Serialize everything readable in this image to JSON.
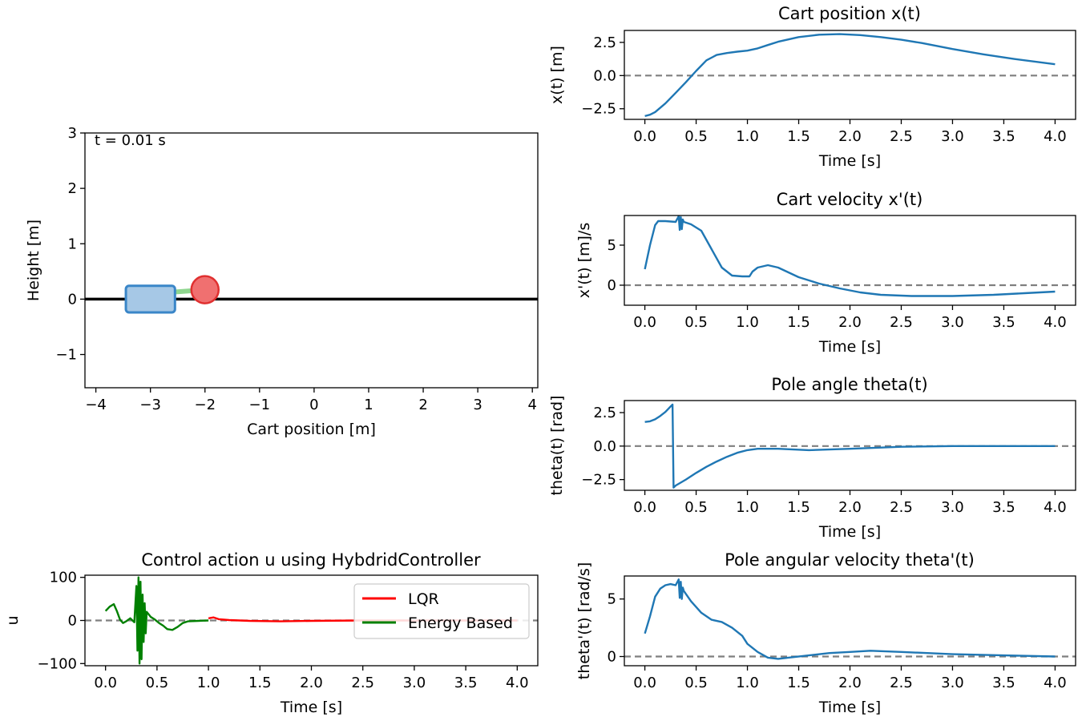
{
  "chart_data": [
    {
      "id": "animation",
      "type": "scatter",
      "title": "",
      "xlabel": "Cart position [m]",
      "ylabel": "Height [m]",
      "xlim": [
        -4.2,
        4.1
      ],
      "ylim": [
        -1.6,
        3.0
      ],
      "xticks": [
        -4,
        -3,
        -2,
        -1,
        0,
        1,
        2,
        3,
        4
      ],
      "xticklabels": [
        "−4",
        "−3",
        "−2",
        "−1",
        "0",
        "1",
        "2",
        "3",
        "4"
      ],
      "yticks": [
        -1,
        0,
        1,
        2,
        3
      ],
      "yticklabels": [
        "−1",
        "0",
        "1",
        "2",
        "3"
      ],
      "annotation": "t = 0.01 s",
      "ground_y": 0,
      "cart": {
        "x": -3.0,
        "y": 0.0,
        "width": 0.9,
        "height": 0.48,
        "fill": "#a6c8e6",
        "stroke": "#3a86c8"
      },
      "pole_end": {
        "x": -2.0,
        "y": 0.17
      },
      "bob": {
        "x": -2.0,
        "y": 0.17,
        "fill": "#f07070",
        "stroke": "#e03030"
      },
      "pole_color": "#8fd68f"
    },
    {
      "id": "control",
      "type": "line",
      "title": "Control action u using HybdridController",
      "xlabel": "Time [s]",
      "ylabel": "u",
      "xlim": [
        -0.2,
        4.2
      ],
      "ylim": [
        -105,
        105
      ],
      "xticks": [
        0,
        0.5,
        1,
        1.5,
        2,
        2.5,
        3,
        3.5,
        4
      ],
      "xticklabels": [
        "0.0",
        "0.5",
        "1.0",
        "1.5",
        "2.0",
        "2.5",
        "3.0",
        "3.5",
        "4.0"
      ],
      "yticks": [
        -100,
        0,
        100
      ],
      "yticklabels": [
        "−100",
        "0",
        "100"
      ],
      "reference_y": 0,
      "legend": "top-right",
      "series": [
        {
          "name": "LQR",
          "color": "#ff0000",
          "x": [
            1.0,
            1.05,
            1.1,
            1.2,
            1.4,
            1.7,
            2.0,
            2.5,
            3.0,
            3.5,
            4.0
          ],
          "y": [
            5,
            7,
            3,
            1,
            -1,
            -2,
            -1,
            0,
            0,
            0,
            0
          ]
        },
        {
          "name": "Energy Based",
          "color": "#008000",
          "x": [
            0.0,
            0.04,
            0.08,
            0.11,
            0.14,
            0.17,
            0.2,
            0.24,
            0.28,
            0.3,
            0.31,
            0.32,
            0.33,
            0.34,
            0.35,
            0.36,
            0.37,
            0.38,
            0.39,
            0.4,
            0.44,
            0.48,
            0.52,
            0.56,
            0.6,
            0.65,
            0.7,
            0.75,
            0.8,
            0.9,
            1.0
          ],
          "y": [
            22,
            32,
            38,
            22,
            2,
            -6,
            -2,
            5,
            -4,
            80,
            -70,
            100,
            -100,
            90,
            -90,
            60,
            -50,
            40,
            -30,
            20,
            8,
            2,
            -6,
            -12,
            -20,
            -22,
            -15,
            -6,
            -2,
            -1,
            0
          ]
        }
      ]
    },
    {
      "id": "position",
      "type": "line",
      "title": "Cart position x(t)",
      "xlabel": "Time [s]",
      "ylabel": "x(t) [m]",
      "xlim": [
        -0.2,
        4.2
      ],
      "ylim": [
        -3.3,
        3.4
      ],
      "xticks": [
        0,
        0.5,
        1,
        1.5,
        2,
        2.5,
        3,
        3.5,
        4
      ],
      "xticklabels": [
        "0.0",
        "0.5",
        "1.0",
        "1.5",
        "2.0",
        "2.5",
        "3.0",
        "3.5",
        "4.0"
      ],
      "yticks": [
        -2.5,
        0,
        2.5
      ],
      "yticklabels": [
        "−2.5",
        "0.0",
        "2.5"
      ],
      "reference_y": 0,
      "series": [
        {
          "color": "#1f77b4",
          "x": [
            0.0,
            0.05,
            0.1,
            0.2,
            0.3,
            0.4,
            0.5,
            0.6,
            0.7,
            0.8,
            0.9,
            1.0,
            1.1,
            1.2,
            1.3,
            1.5,
            1.7,
            1.9,
            2.1,
            2.3,
            2.5,
            2.7,
            3.0,
            3.3,
            3.6,
            4.0
          ],
          "y": [
            -3.05,
            -2.95,
            -2.75,
            -2.1,
            -1.3,
            -0.5,
            0.35,
            1.15,
            1.55,
            1.7,
            1.8,
            1.88,
            2.05,
            2.3,
            2.55,
            2.9,
            3.08,
            3.12,
            3.05,
            2.9,
            2.7,
            2.45,
            2.0,
            1.6,
            1.25,
            0.85
          ]
        }
      ]
    },
    {
      "id": "velocity",
      "type": "line",
      "title": "Cart velocity x'(t)",
      "xlabel": "Time [s]",
      "ylabel": "x'(t) [m]/s",
      "xlim": [
        -0.2,
        4.2
      ],
      "ylim": [
        -2.5,
        8.7
      ],
      "xticks": [
        0,
        0.5,
        1,
        1.5,
        2,
        2.5,
        3,
        3.5,
        4
      ],
      "xticklabels": [
        "0.0",
        "0.5",
        "1.0",
        "1.5",
        "2.0",
        "2.5",
        "3.0",
        "3.5",
        "4.0"
      ],
      "yticks": [
        0,
        5
      ],
      "yticklabels": [
        "0",
        "5"
      ],
      "reference_y": 0,
      "series": [
        {
          "color": "#1f77b4",
          "x": [
            0.0,
            0.05,
            0.1,
            0.13,
            0.2,
            0.3,
            0.33,
            0.34,
            0.35,
            0.36,
            0.37,
            0.38,
            0.45,
            0.55,
            0.65,
            0.75,
            0.85,
            0.95,
            1.02,
            1.05,
            1.1,
            1.2,
            1.3,
            1.4,
            1.5,
            1.7,
            1.9,
            2.1,
            2.3,
            2.6,
            3.0,
            3.4,
            3.7,
            4.0
          ],
          "y": [
            2.0,
            5.0,
            7.5,
            8.0,
            8.0,
            7.9,
            8.6,
            6.9,
            8.5,
            7.0,
            8.2,
            7.9,
            7.6,
            6.8,
            4.5,
            2.2,
            1.2,
            1.1,
            1.1,
            1.7,
            2.2,
            2.5,
            2.2,
            1.6,
            1.0,
            0.2,
            -0.4,
            -0.9,
            -1.2,
            -1.35,
            -1.35,
            -1.2,
            -1.0,
            -0.8
          ]
        }
      ]
    },
    {
      "id": "angle",
      "type": "line",
      "title": "Pole angle theta(t)",
      "xlabel": "Time [s]",
      "ylabel": "theta(t) [rad]",
      "xlim": [
        -0.2,
        4.2
      ],
      "ylim": [
        -3.3,
        3.4
      ],
      "xticks": [
        0,
        0.5,
        1,
        1.5,
        2,
        2.5,
        3,
        3.5,
        4
      ],
      "xticklabels": [
        "0.0",
        "0.5",
        "1.0",
        "1.5",
        "2.0",
        "2.5",
        "3.0",
        "3.5",
        "4.0"
      ],
      "yticks": [
        -2.5,
        0,
        2.5
      ],
      "yticklabels": [
        "−2.5",
        "0.0",
        "2.5"
      ],
      "reference_y": 0,
      "series": [
        {
          "color": "#1f77b4",
          "x": [
            0.0,
            0.05,
            0.1,
            0.15,
            0.2,
            0.25,
            0.27,
            0.28,
            0.3,
            0.4,
            0.5,
            0.6,
            0.7,
            0.8,
            0.9,
            1.0,
            1.1,
            1.3,
            1.6,
            2.0,
            2.5,
            3.0,
            3.5,
            4.0
          ],
          "y": [
            1.8,
            1.85,
            2.0,
            2.25,
            2.55,
            2.95,
            3.1,
            -3.1,
            -2.95,
            -2.5,
            -2.0,
            -1.55,
            -1.15,
            -0.8,
            -0.5,
            -0.3,
            -0.2,
            -0.2,
            -0.3,
            -0.2,
            -0.05,
            0.0,
            0.0,
            0.0
          ]
        }
      ]
    },
    {
      "id": "angular_velocity",
      "type": "line",
      "title": "Pole angular velocity theta'(t)",
      "xlabel": "Time [s]",
      "ylabel": "theta'(t) [rad/s]",
      "xlim": [
        -0.2,
        4.2
      ],
      "ylim": [
        -0.8,
        7.0
      ],
      "xticks": [
        0,
        0.5,
        1,
        1.5,
        2,
        2.5,
        3,
        3.5,
        4
      ],
      "xticklabels": [
        "0.0",
        "0.5",
        "1.0",
        "1.5",
        "2.0",
        "2.5",
        "3.0",
        "3.5",
        "4.0"
      ],
      "yticks": [
        0,
        5
      ],
      "yticklabels": [
        "0",
        "5"
      ],
      "reference_y": 0,
      "series": [
        {
          "color": "#1f77b4",
          "x": [
            0.0,
            0.05,
            0.1,
            0.15,
            0.2,
            0.25,
            0.3,
            0.33,
            0.34,
            0.35,
            0.36,
            0.37,
            0.38,
            0.45,
            0.55,
            0.65,
            0.75,
            0.85,
            0.95,
            1.0,
            1.1,
            1.2,
            1.3,
            1.4,
            1.6,
            1.8,
            2.0,
            2.2,
            2.5,
            3.0,
            3.5,
            4.0
          ],
          "y": [
            2.0,
            3.5,
            5.2,
            5.9,
            6.2,
            6.3,
            6.2,
            6.7,
            5.1,
            6.5,
            5.0,
            6.0,
            5.7,
            4.8,
            3.8,
            3.2,
            3.0,
            2.5,
            1.8,
            1.1,
            0.4,
            -0.1,
            -0.2,
            -0.1,
            0.1,
            0.3,
            0.4,
            0.5,
            0.4,
            0.2,
            0.1,
            0.0
          ]
        }
      ]
    }
  ]
}
